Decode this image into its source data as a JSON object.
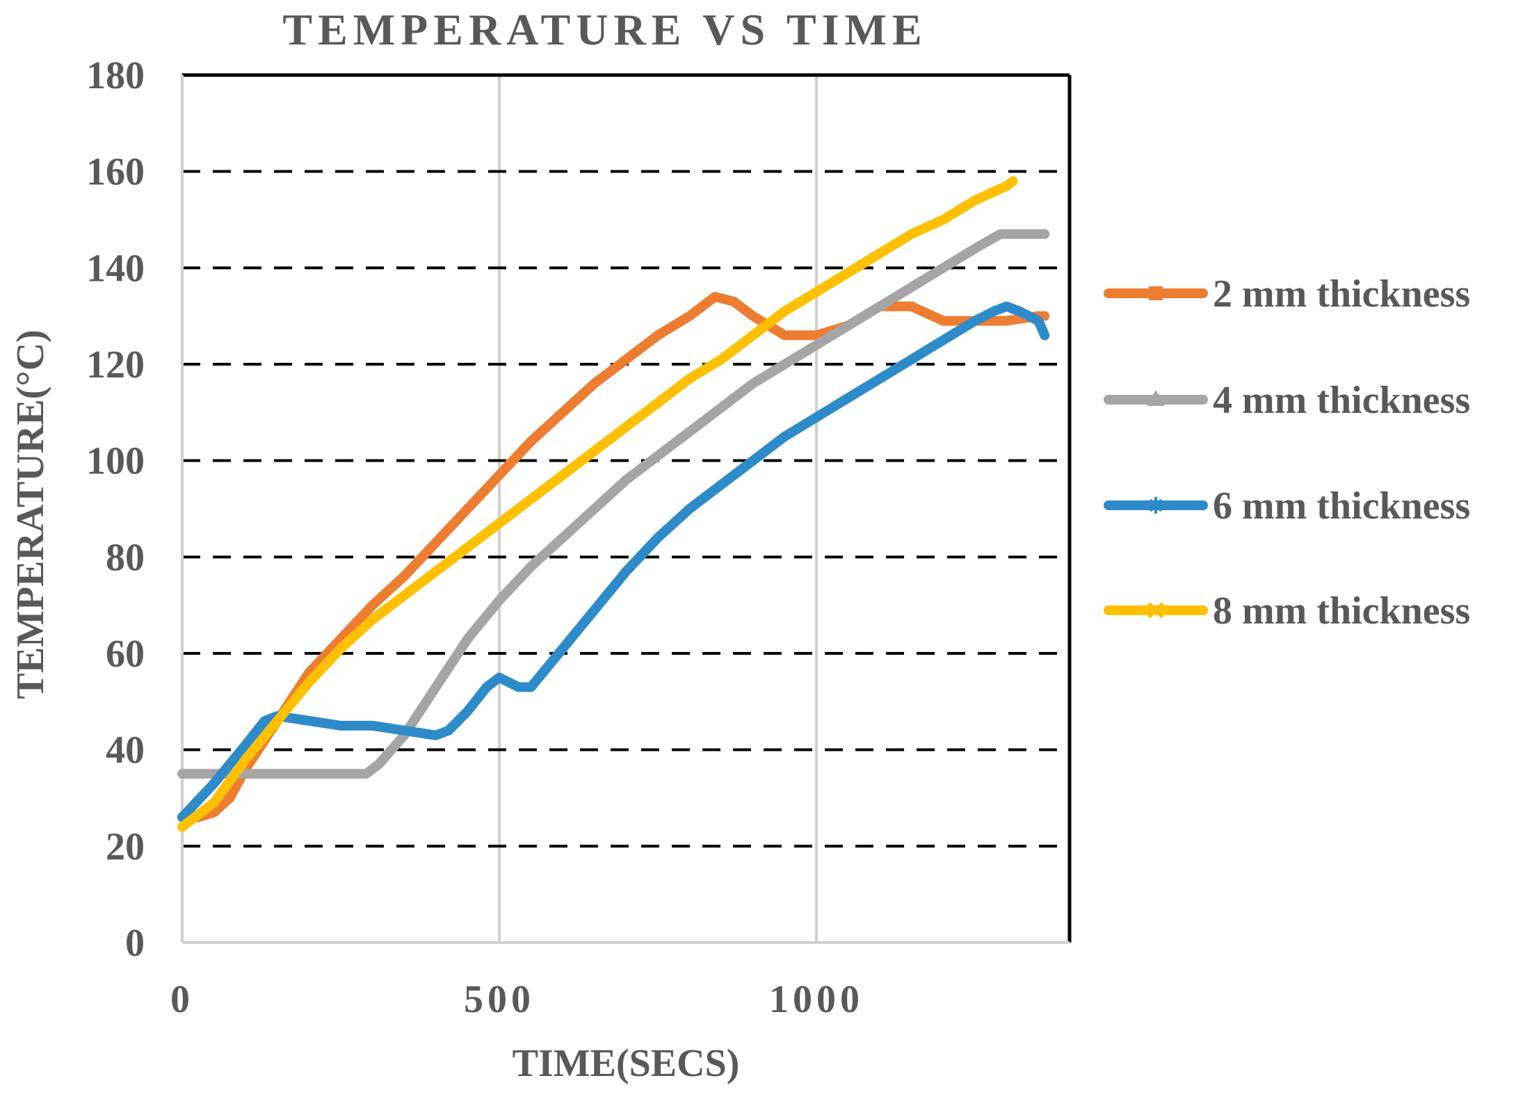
{
  "chart_data": {
    "type": "line",
    "title": "TEMPERATURE VS TIME",
    "xlabel": "TIME(SECS)",
    "ylabel": "TEMPERATURE(°C)",
    "xlim": [
      0,
      1400
    ],
    "ylim": [
      0,
      180
    ],
    "x_ticks": [
      0,
      500,
      1000
    ],
    "x_tick_labels": [
      "0",
      "500",
      "1000"
    ],
    "y_ticks": [
      0,
      20,
      40,
      60,
      80,
      100,
      120,
      140,
      160,
      180
    ],
    "y_tick_labels": [
      "0",
      "20",
      "40",
      "60",
      "80",
      "100",
      "120",
      "140",
      "160",
      "180"
    ],
    "grid": {
      "vertical_solid": [
        500,
        1000
      ],
      "horizontal_dashed": [
        20,
        40,
        60,
        80,
        100,
        120,
        140,
        160
      ]
    },
    "legend_position": "right",
    "series": [
      {
        "name": "2 mm thickness",
        "color": "#ED7D31",
        "marker": "square",
        "points": [
          [
            0,
            26
          ],
          [
            25,
            26
          ],
          [
            50,
            27
          ],
          [
            75,
            30
          ],
          [
            100,
            36
          ],
          [
            125,
            41
          ],
          [
            150,
            46
          ],
          [
            175,
            51
          ],
          [
            200,
            56
          ],
          [
            250,
            63
          ],
          [
            300,
            70
          ],
          [
            350,
            76
          ],
          [
            400,
            83
          ],
          [
            450,
            90
          ],
          [
            500,
            97
          ],
          [
            550,
            104
          ],
          [
            600,
            110
          ],
          [
            650,
            116
          ],
          [
            700,
            121
          ],
          [
            750,
            126
          ],
          [
            800,
            130
          ],
          [
            840,
            134
          ],
          [
            870,
            133
          ],
          [
            900,
            130
          ],
          [
            950,
            126
          ],
          [
            1000,
            126
          ],
          [
            1050,
            128
          ],
          [
            1100,
            132
          ],
          [
            1150,
            132
          ],
          [
            1200,
            129
          ],
          [
            1250,
            129
          ],
          [
            1300,
            129
          ],
          [
            1350,
            130
          ],
          [
            1360,
            130
          ]
        ]
      },
      {
        "name": "4 mm thickness",
        "color": "#A5A5A5",
        "marker": "triangle",
        "points": [
          [
            0,
            35
          ],
          [
            100,
            35
          ],
          [
            200,
            35
          ],
          [
            290,
            35
          ],
          [
            310,
            37
          ],
          [
            350,
            43
          ],
          [
            400,
            53
          ],
          [
            450,
            63
          ],
          [
            500,
            71
          ],
          [
            550,
            78
          ],
          [
            600,
            84
          ],
          [
            650,
            90
          ],
          [
            700,
            96
          ],
          [
            750,
            101
          ],
          [
            800,
            106
          ],
          [
            850,
            111
          ],
          [
            900,
            116
          ],
          [
            950,
            120
          ],
          [
            1000,
            124
          ],
          [
            1050,
            128
          ],
          [
            1100,
            132
          ],
          [
            1150,
            136
          ],
          [
            1200,
            140
          ],
          [
            1250,
            144
          ],
          [
            1290,
            147
          ],
          [
            1320,
            147
          ],
          [
            1350,
            147
          ],
          [
            1360,
            147
          ]
        ]
      },
      {
        "name": "6 mm thickness",
        "color": "#2E8BC9",
        "marker": "star",
        "points": [
          [
            0,
            26
          ],
          [
            50,
            33
          ],
          [
            100,
            41
          ],
          [
            130,
            46
          ],
          [
            150,
            47
          ],
          [
            200,
            46
          ],
          [
            250,
            45
          ],
          [
            300,
            45
          ],
          [
            350,
            44
          ],
          [
            400,
            43
          ],
          [
            420,
            44
          ],
          [
            450,
            48
          ],
          [
            480,
            53
          ],
          [
            500,
            55
          ],
          [
            530,
            53
          ],
          [
            550,
            53
          ],
          [
            600,
            61
          ],
          [
            650,
            69
          ],
          [
            700,
            77
          ],
          [
            750,
            84
          ],
          [
            800,
            90
          ],
          [
            850,
            95
          ],
          [
            900,
            100
          ],
          [
            950,
            105
          ],
          [
            1000,
            109
          ],
          [
            1050,
            113
          ],
          [
            1100,
            117
          ],
          [
            1150,
            121
          ],
          [
            1200,
            125
          ],
          [
            1250,
            129
          ],
          [
            1280,
            131
          ],
          [
            1300,
            132
          ],
          [
            1320,
            131
          ],
          [
            1350,
            129
          ],
          [
            1360,
            126
          ]
        ]
      },
      {
        "name": "8 mm thickness",
        "color": "#FFC000",
        "marker": "x",
        "points": [
          [
            0,
            24
          ],
          [
            50,
            29
          ],
          [
            100,
            38
          ],
          [
            150,
            46
          ],
          [
            200,
            54
          ],
          [
            250,
            61
          ],
          [
            300,
            67
          ],
          [
            350,
            72
          ],
          [
            400,
            77
          ],
          [
            450,
            82
          ],
          [
            500,
            87
          ],
          [
            550,
            92
          ],
          [
            600,
            97
          ],
          [
            650,
            102
          ],
          [
            700,
            107
          ],
          [
            750,
            112
          ],
          [
            800,
            117
          ],
          [
            850,
            121
          ],
          [
            900,
            126
          ],
          [
            950,
            131
          ],
          [
            1000,
            135
          ],
          [
            1050,
            139
          ],
          [
            1100,
            143
          ],
          [
            1150,
            147
          ],
          [
            1200,
            150
          ],
          [
            1250,
            154
          ],
          [
            1300,
            157
          ],
          [
            1310,
            158
          ]
        ]
      }
    ]
  }
}
